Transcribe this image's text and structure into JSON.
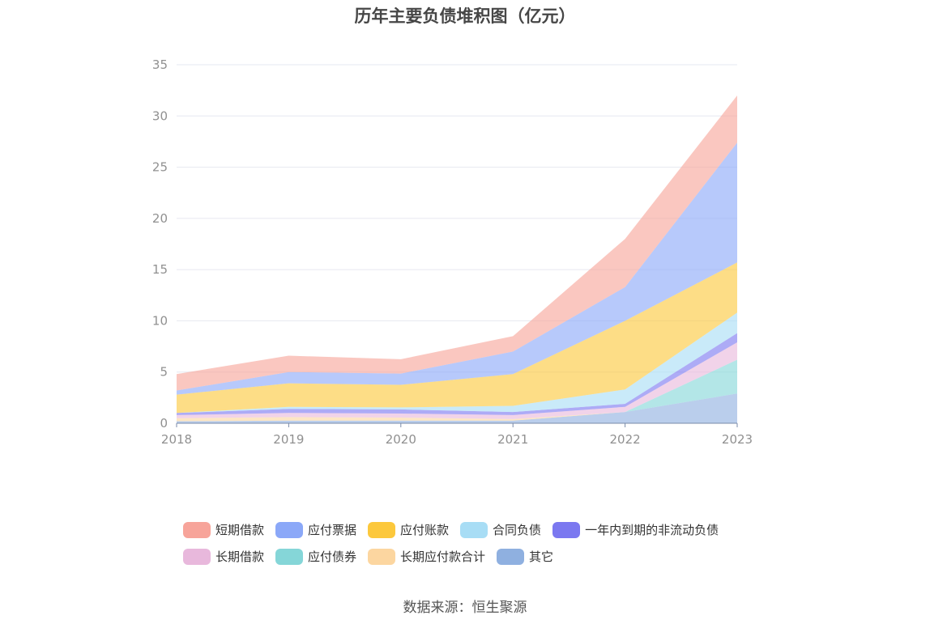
{
  "title": "历年主要负债堆积图（亿元）",
  "source": "数据来源：恒生聚源",
  "chart_data": {
    "type": "area",
    "stacked": true,
    "title": "历年主要负债堆积图（亿元）",
    "xlabel": "",
    "ylabel": "",
    "x": [
      "2018",
      "2019",
      "2020",
      "2021",
      "2022",
      "2023"
    ],
    "ylim": [
      0,
      35
    ],
    "yticks": [
      "0",
      "5",
      "10",
      "15",
      "20",
      "25",
      "30",
      "35"
    ],
    "grid": true,
    "legend_position": "bottom",
    "series": [
      {
        "name": "其它",
        "color": "#8fb0e0",
        "values": [
          0.2,
          0.25,
          0.25,
          0.25,
          1.1,
          2.9
        ]
      },
      {
        "name": "长期应付款合计",
        "color": "#fcd6a0",
        "values": [
          0.3,
          0.35,
          0.3,
          0.15,
          0.0,
          0.0
        ]
      },
      {
        "name": "应付债券",
        "color": "#85d6d8",
        "values": [
          0.0,
          0.0,
          0.0,
          0.0,
          0.0,
          3.3
        ]
      },
      {
        "name": "长期借款",
        "color": "#e8b8dc",
        "values": [
          0.3,
          0.4,
          0.4,
          0.4,
          0.5,
          1.7
        ]
      },
      {
        "name": "一年内到期的非流动负债",
        "color": "#7b78f0",
        "values": [
          0.2,
          0.4,
          0.4,
          0.3,
          0.3,
          0.9
        ]
      },
      {
        "name": "合同负债",
        "color": "#a8ddf5",
        "values": [
          0.0,
          0.2,
          0.2,
          0.6,
          1.4,
          2.0
        ]
      },
      {
        "name": "应付账款",
        "color": "#fcc83c",
        "values": [
          1.8,
          2.3,
          2.2,
          3.1,
          6.7,
          4.9
        ]
      },
      {
        "name": "应付票据",
        "color": "#8ba8f8",
        "values": [
          0.4,
          1.1,
          1.1,
          2.2,
          3.3,
          11.7
        ]
      },
      {
        "name": "短期借款",
        "color": "#f7a49a",
        "values": [
          1.6,
          1.6,
          1.4,
          1.5,
          4.7,
          4.6
        ]
      }
    ]
  },
  "legend": {
    "rows": [
      [
        {
          "label": "短期借款",
          "color": "#f7a49a"
        },
        {
          "label": "应付票据",
          "color": "#8ba8f8"
        },
        {
          "label": "应付账款",
          "color": "#fcc83c"
        },
        {
          "label": "合同负债",
          "color": "#a8ddf5"
        },
        {
          "label": "一年内到期的非流动负债",
          "color": "#7b78f0"
        }
      ],
      [
        {
          "label": "长期借款",
          "color": "#e8b8dc"
        },
        {
          "label": "应付债券",
          "color": "#85d6d8"
        },
        {
          "label": "长期应付款合计",
          "color": "#fcd6a0"
        },
        {
          "label": "其它",
          "color": "#8fb0e0"
        }
      ]
    ]
  }
}
